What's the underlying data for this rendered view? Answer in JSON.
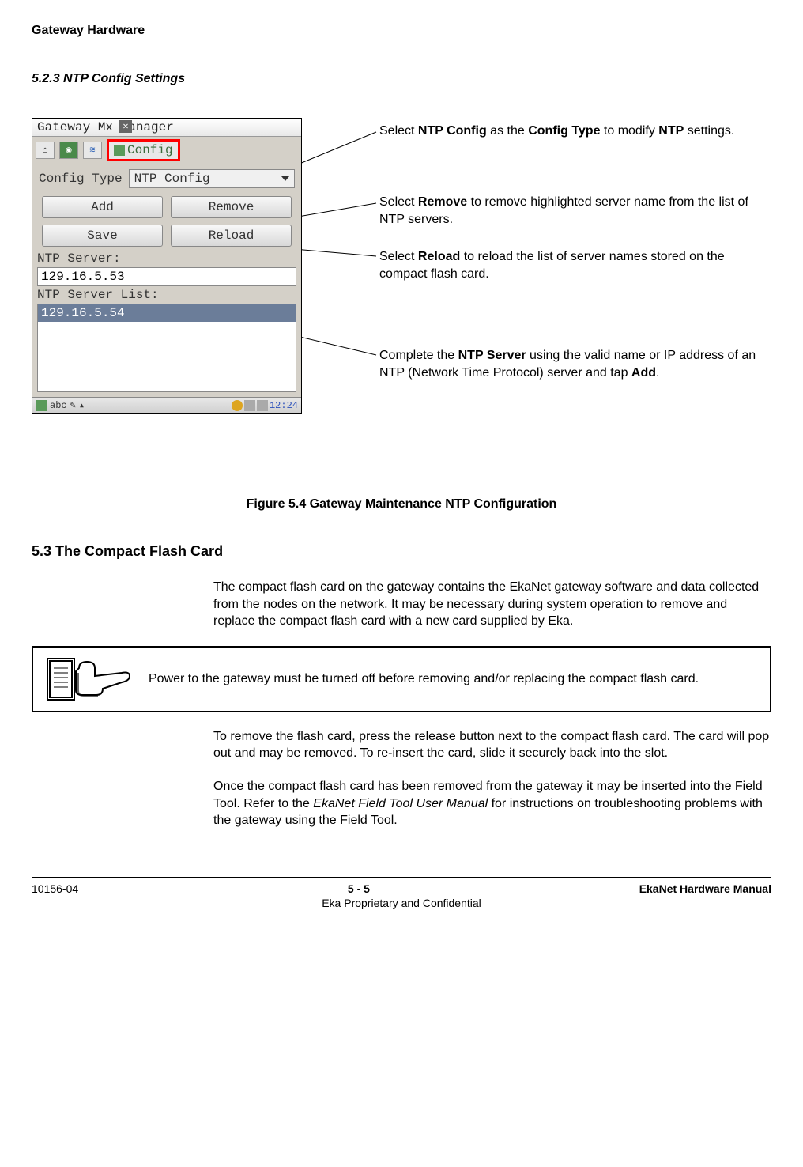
{
  "header_title": "Gateway Hardware",
  "section_523": "5.2.3     NTP Config Settings",
  "screenshot": {
    "title": "Gateway   Mx  Manager",
    "config_btn": "Config",
    "config_type_label": "Config Type",
    "config_type_value": "NTP Config",
    "btn_add": "Add",
    "btn_remove": "Remove",
    "btn_save": "Save",
    "btn_reload": "Reload",
    "ntp_server_label": "NTP Server:",
    "ntp_server_value": "129.16.5.53",
    "ntp_server_list_label": "NTP Server List:",
    "ntp_server_list_item": "129.16.5.54",
    "task_abc": "abc",
    "task_pen": "✎",
    "task_arrow": "▴",
    "task_time": "12:24"
  },
  "callouts": {
    "config_html": "Select <b>NTP Config</b> as the <b>Config Type</b> to modify <b>NTP</b> settings.",
    "remove_html": "Select <b>Remove</b> to remove highlighted server name from the list of NTP servers.",
    "reload_html": "Select <b>Reload</b> to reload the list of server names stored on the compact flash card.",
    "ntp_html": "Complete the <b>NTP Server</b> using the valid name or IP address of an NTP (Network Time Protocol) server and tap <b>Add</b>."
  },
  "figure_caption": "Figure 5.4  Gateway Maintenance NTP Configuration",
  "section_53": "5.3        The Compact Flash Card",
  "para1": "The compact flash card on the gateway contains the EkaNet gateway software and data collected from the nodes on the network. It may be necessary during system operation to remove and replace the compact flash card with a new card supplied by Eka.",
  "note_text": "Power to the gateway must be turned off before removing and/or replacing the compact flash card.",
  "para2": "To remove the flash card, press the release button next to the compact flash card. The card will pop out and may be removed. To re-insert the card, slide it securely back into the slot.",
  "para3_html": "Once the compact flash card has been removed from the gateway it may be inserted into the Field Tool. Refer to the <i>EkaNet Field Tool User Manual</i> for instructions on troubleshooting problems with the gateway using the Field Tool.",
  "footer": {
    "left": "10156-04",
    "center": "5 - 5",
    "right": "EkaNet Hardware Manual",
    "sub": "Eka Proprietary and Confidential"
  }
}
